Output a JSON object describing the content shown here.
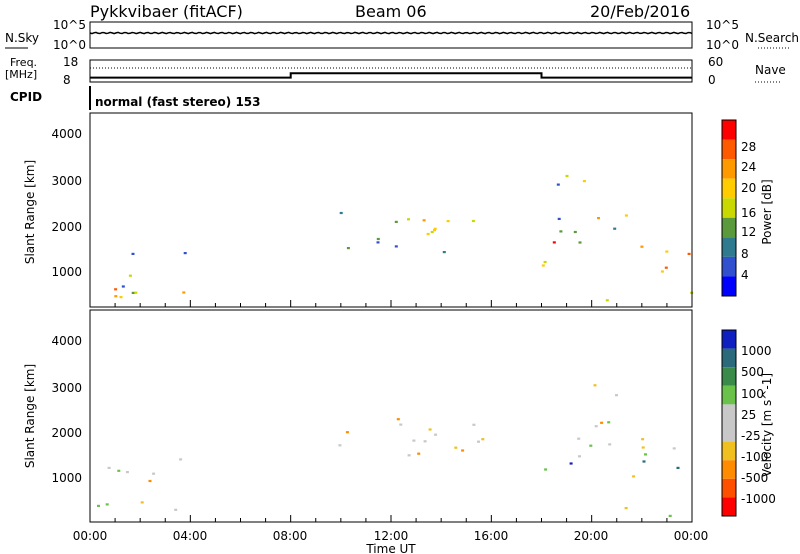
{
  "header": {
    "title": "Pykkvibaer (fitACF)",
    "beam": "Beam 06",
    "date": "20/Feb/2016"
  },
  "top_panel_labels": {
    "nsky": "N.Sky",
    "nsearch": "N.Search",
    "freq_line1": "Freq.",
    "freq_line2": "[MHz]",
    "nave": "Nave",
    "cpid": "CPID",
    "cpid_value": "normal (fast stereo) 153",
    "noise_ticks_left": [
      "10^5",
      "10^0"
    ],
    "noise_ticks_right": [
      "10^5",
      "10^0"
    ],
    "freq_ticks_left": [
      "18",
      "8"
    ],
    "nave_ticks_right": [
      "60",
      "0"
    ]
  },
  "power_colorbar": {
    "label": "Power [dB]",
    "ticks": [
      "28",
      "24",
      "20",
      "16",
      "12",
      "8",
      "4"
    ],
    "colors": [
      "#ff0000",
      "#ff5a00",
      "#ff9900",
      "#ffcc00",
      "#c8d800",
      "#5a9a3c",
      "#2f7a8e",
      "#3050d0",
      "#0000ff"
    ]
  },
  "velocity_colorbar": {
    "label": "Velocity [m s^-1]",
    "ticks": [
      "1000",
      "500",
      "100",
      "25",
      "-25",
      "-100",
      "-500",
      "-1000"
    ],
    "colors": [
      "#1020c0",
      "#2a6a7a",
      "#3a8a4a",
      "#6ac24a",
      "#c8c8c8",
      "#c8c8c8",
      "#f0c020",
      "#ff8c00",
      "#ff5000",
      "#ff0000"
    ]
  },
  "chart_data": [
    {
      "type": "line",
      "name": "noise",
      "ylabel_left": "N.Sky",
      "ylabel_right": "N.Search"
    },
    {
      "type": "line",
      "name": "frequency",
      "ylabel_left": "Freq. [MHz]",
      "ylabel_right": "Nave",
      "x": [
        "00:00",
        "08:00",
        "08:00",
        "18:00",
        "18:00",
        "24:00"
      ],
      "freq_mhz": [
        10,
        10,
        12,
        12,
        10,
        10
      ]
    },
    {
      "type": "heatmap",
      "name": "power",
      "ylabel": "Slant Range [km]",
      "yticks": [
        "1000",
        "2000",
        "3000",
        "4000"
      ],
      "ylim": [
        180,
        4500
      ],
      "xlim": [
        "00:00",
        "24:00"
      ],
      "regions": [
        {
          "t0": 0.0,
          "t1": 4.2,
          "r0": 300,
          "r1": 1500,
          "level": "mixed"
        },
        {
          "t0": 9.7,
          "t1": 16.0,
          "r0": 1300,
          "r1": 2300,
          "level": "medium"
        },
        {
          "t0": 18.0,
          "t1": 24.0,
          "r0": 800,
          "r1": 3200,
          "level": "high"
        }
      ]
    },
    {
      "type": "heatmap",
      "name": "velocity",
      "ylabel": "Slant Range [km]",
      "yticks": [
        "1000",
        "2000",
        "3000",
        "4000"
      ],
      "ylim": [
        180,
        4500
      ],
      "xlim": [
        "00:00",
        "24:00"
      ]
    }
  ],
  "x_axis": {
    "ticks": [
      "00:00",
      "04:00",
      "08:00",
      "12:00",
      "16:00",
      "20:00",
      "00:00"
    ],
    "label": "Time UT"
  }
}
